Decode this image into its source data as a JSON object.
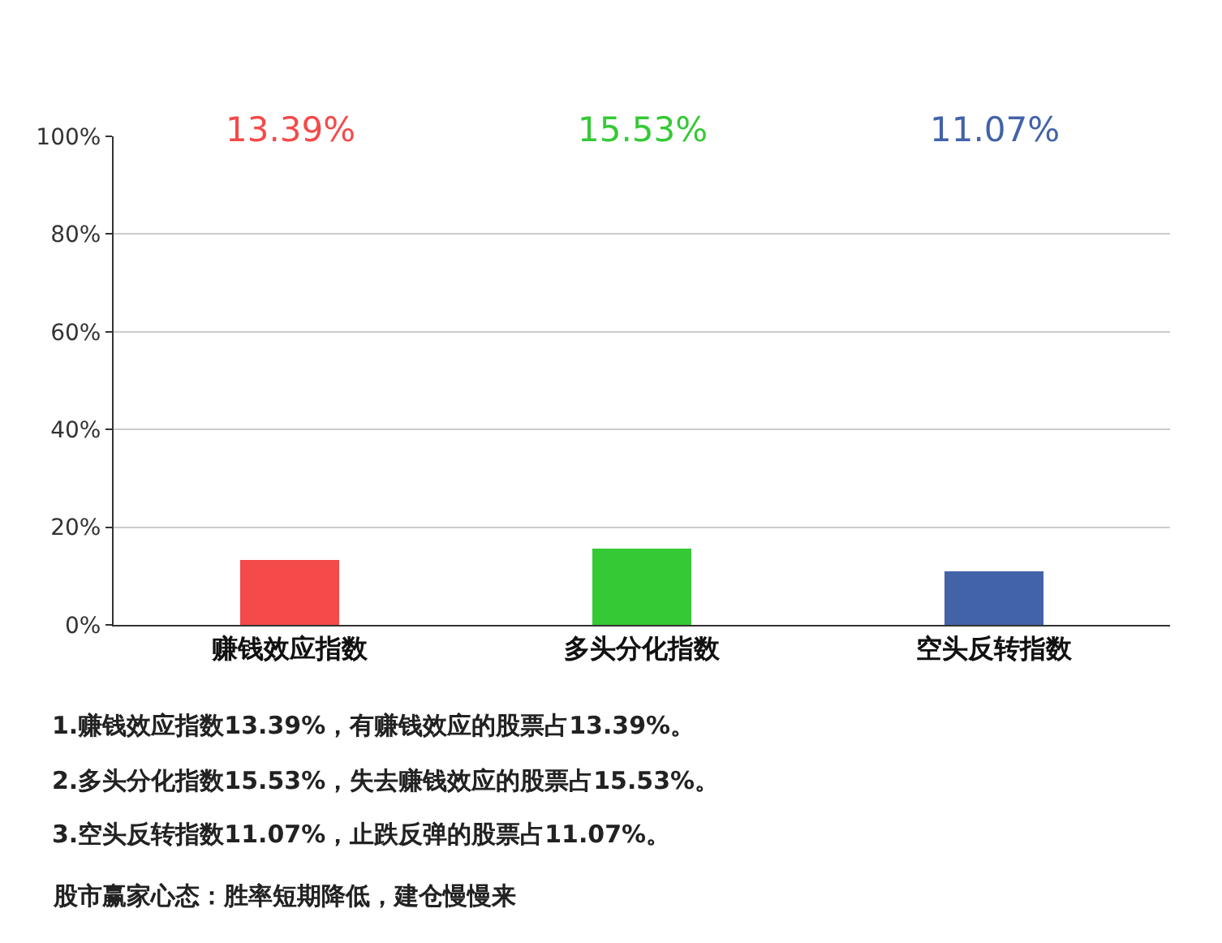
{
  "chart_data": {
    "type": "bar",
    "categories": [
      "赚钱效应指数",
      "多头分化指数",
      "空头反转指数"
    ],
    "values": [
      13.39,
      15.53,
      11.07
    ],
    "colors": [
      "#f44a4a",
      "#36c936",
      "#4263a8"
    ],
    "ylim": [
      0,
      100
    ],
    "yticks": [
      {
        "value": 0,
        "label": "0%"
      },
      {
        "value": 20,
        "label": "20%"
      },
      {
        "value": 40,
        "label": "40%"
      },
      {
        "value": 60,
        "label": "60%"
      },
      {
        "value": 80,
        "label": "80%"
      },
      {
        "value": 100,
        "label": "100%"
      }
    ],
    "grid": "y",
    "annotations": [
      "13.39%",
      "15.53%",
      "11.07%",
      "1.赚钱效应指数13.39%，有赚钱效应的股票占13.39%。",
      "2.多头分化指数15.53%，失去赚钱效应的股票占15.53%。",
      "3.空头反转指数11.07%，止跌反弹的股票占11.07%。",
      "股市赢家心态：胜率短期降低，建仓慢慢来"
    ]
  }
}
